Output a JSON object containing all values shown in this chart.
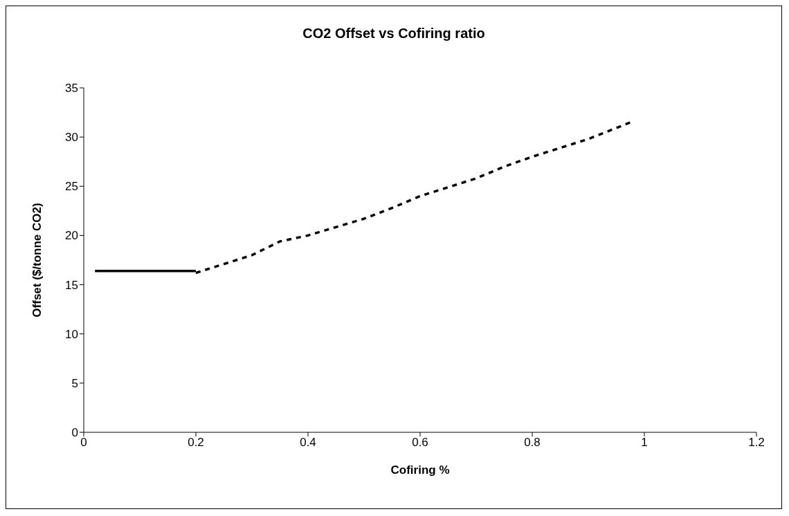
{
  "chart_data": {
    "type": "line",
    "title": "CO2 Offset vs Cofiring ratio",
    "xlabel": "Cofiring %",
    "ylabel": "Offset ($/tonne CO2)",
    "xlim": [
      0,
      1.2
    ],
    "xticks": [
      0,
      0.2,
      0.4,
      0.6,
      0.8,
      1,
      1.2
    ],
    "ylim": [
      0,
      35
    ],
    "yticks": [
      0,
      5,
      10,
      15,
      20,
      25,
      30,
      35
    ],
    "grid": false,
    "legend": false,
    "marker": "none",
    "series": [
      {
        "color": "#000000",
        "line_style": "solid",
        "x": [
          0.02,
          0.2
        ],
        "values": [
          16.4,
          16.4
        ]
      },
      {
        "color": "#000000",
        "line_style": "dashed",
        "x": [
          0.2,
          0.3,
          0.35,
          0.4,
          0.5,
          0.55,
          0.6,
          0.7,
          0.75,
          0.8,
          0.9,
          0.98
        ],
        "values": [
          16.2,
          18,
          19.4,
          20,
          21.7,
          22.8,
          24,
          25.8,
          27,
          28,
          29.8,
          31.6
        ]
      }
    ]
  }
}
